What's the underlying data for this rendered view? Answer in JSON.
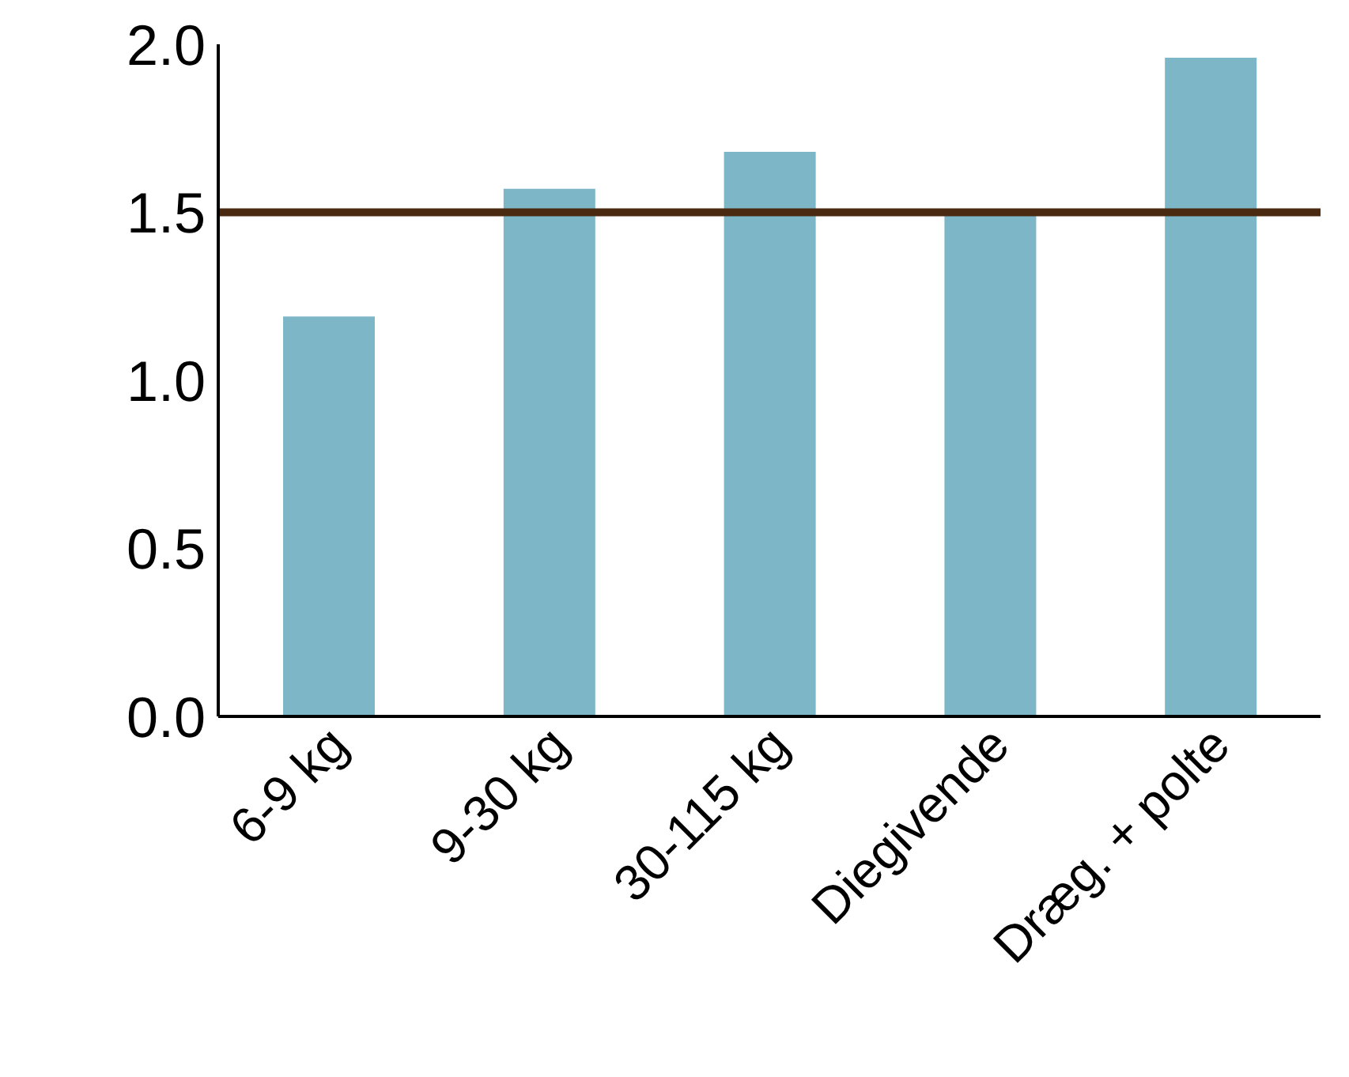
{
  "chart_data": {
    "type": "bar",
    "categories": [
      "6-9 kg",
      "9-30 kg",
      "30-115 kg",
      "Diegivende",
      "Dræg. + polte"
    ],
    "values": [
      1.19,
      1.57,
      1.68,
      1.5,
      1.96
    ],
    "color": "#7db6c6",
    "ylim": [
      0,
      2
    ],
    "yticks": [
      {
        "value": 0,
        "label": "0.0"
      },
      {
        "value": 0.5,
        "label": "0.5"
      },
      {
        "value": 1,
        "label": "1.0"
      },
      {
        "value": 1.5,
        "label": "1.5"
      },
      {
        "value": 2,
        "label": "2.0"
      }
    ],
    "ref_lines": [
      {
        "axis": "y",
        "value": 1.5,
        "color": "#4a2a10"
      }
    ],
    "grid": false,
    "legend": false
  }
}
